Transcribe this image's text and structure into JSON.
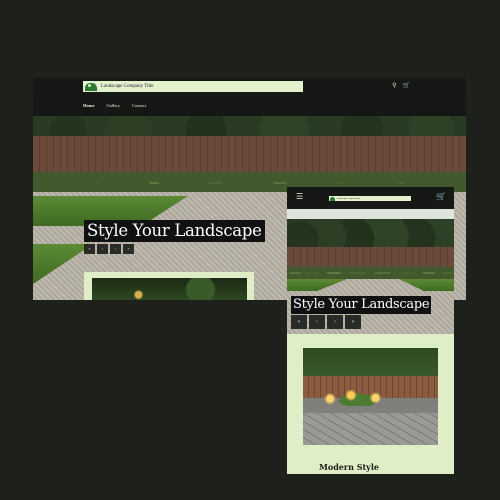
{
  "site": {
    "title": "Landscape Company Title"
  },
  "desktop": {
    "nav": [
      "Home",
      "Gallery",
      "Contact"
    ],
    "headline": "Style Your Landscape",
    "hero_buttons": [
      "«",
      "‹",
      "›",
      "»"
    ],
    "icons": {
      "search": "search-icon",
      "cart": "cart-icon"
    }
  },
  "mobile": {
    "headline": "Style Your Landscape",
    "hero_buttons": [
      "«",
      "‹",
      "›",
      "»"
    ],
    "card_title": "Modern Style",
    "icons": {
      "menu": "hamburger-menu-icon",
      "cart": "cart-icon"
    }
  },
  "colors": {
    "background": "#1d201b",
    "accent_light": "#dfeec7",
    "header_dark": "#151814",
    "logo_green": "#2d7a33"
  }
}
